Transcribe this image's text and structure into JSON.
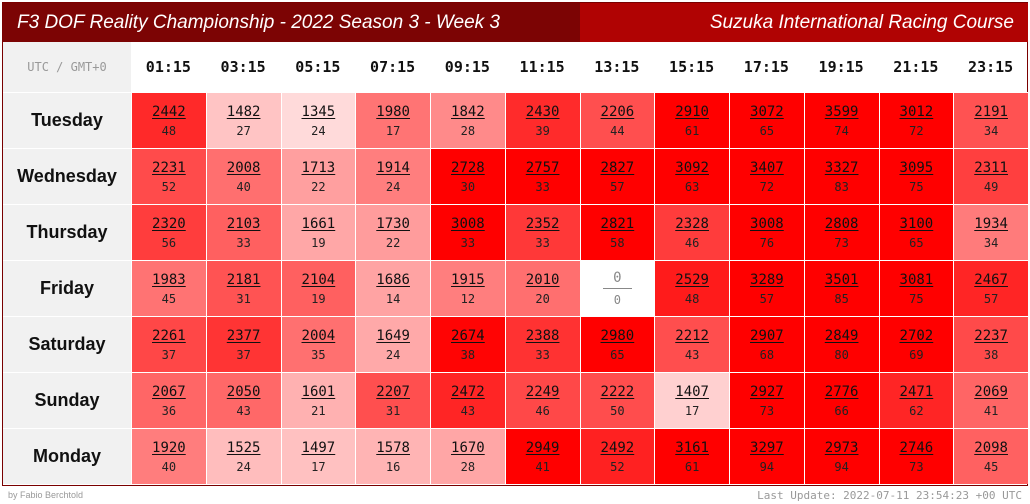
{
  "header": {
    "title": "F3 DOF Reality Championship - 2022 Season 3 - Week 3",
    "track": "Suzuka International Racing Course"
  },
  "timezone_label": "UTC / GMT+0",
  "footer": {
    "credit": "by Fabio Berchtold",
    "last_update": "Last Update: 2022-07-11 23:54:23 +00 UTC"
  },
  "colors": {
    "header_dark": "#7c0404",
    "header_red": "#b00303",
    "cell_max": "#ff0000",
    "cell_min": "#ffffff",
    "row_head_bg": "#f1f1f1"
  },
  "chart_data": {
    "type": "heatmap",
    "columns": [
      "01:15",
      "03:15",
      "05:15",
      "07:15",
      "09:15",
      "11:15",
      "13:15",
      "15:15",
      "17:15",
      "19:15",
      "21:15",
      "23:15"
    ],
    "rows": [
      "Tuesday",
      "Wednesday",
      "Thursday",
      "Friday",
      "Saturday",
      "Sunday",
      "Monday"
    ],
    "values": [
      [
        2442,
        1482,
        1345,
        1980,
        1842,
        2430,
        2206,
        2910,
        3072,
        3599,
        3012,
        2191
      ],
      [
        2231,
        2008,
        1713,
        1914,
        2728,
        2757,
        2827,
        3092,
        3407,
        3327,
        3095,
        2311
      ],
      [
        2320,
        2103,
        1661,
        1730,
        3008,
        2352,
        2821,
        2328,
        3008,
        2808,
        3100,
        1934
      ],
      [
        1983,
        2181,
        2104,
        1686,
        1915,
        2010,
        0,
        2529,
        3289,
        3501,
        3081,
        2467
      ],
      [
        2261,
        2377,
        2004,
        1649,
        2674,
        2388,
        2980,
        2212,
        2907,
        2849,
        2702,
        2237
      ],
      [
        2067,
        2050,
        1601,
        2207,
        2472,
        2249,
        2222,
        1407,
        2927,
        2776,
        2471,
        2069
      ],
      [
        1920,
        1525,
        1497,
        1578,
        1670,
        2949,
        2492,
        3161,
        3297,
        2973,
        2746,
        2098
      ]
    ],
    "counts": [
      [
        48,
        27,
        24,
        17,
        28,
        39,
        44,
        61,
        65,
        74,
        72,
        34
      ],
      [
        52,
        40,
        22,
        24,
        30,
        33,
        57,
        63,
        72,
        83,
        75,
        49
      ],
      [
        56,
        33,
        19,
        22,
        33,
        33,
        58,
        46,
        76,
        73,
        65,
        34
      ],
      [
        45,
        31,
        19,
        14,
        12,
        20,
        0,
        48,
        57,
        85,
        75,
        57
      ],
      [
        37,
        37,
        35,
        24,
        38,
        33,
        65,
        43,
        68,
        80,
        69,
        38
      ],
      [
        36,
        43,
        21,
        31,
        43,
        46,
        50,
        17,
        73,
        66,
        62,
        41
      ],
      [
        40,
        24,
        17,
        16,
        28,
        41,
        52,
        61,
        94,
        94,
        73,
        45
      ]
    ]
  }
}
